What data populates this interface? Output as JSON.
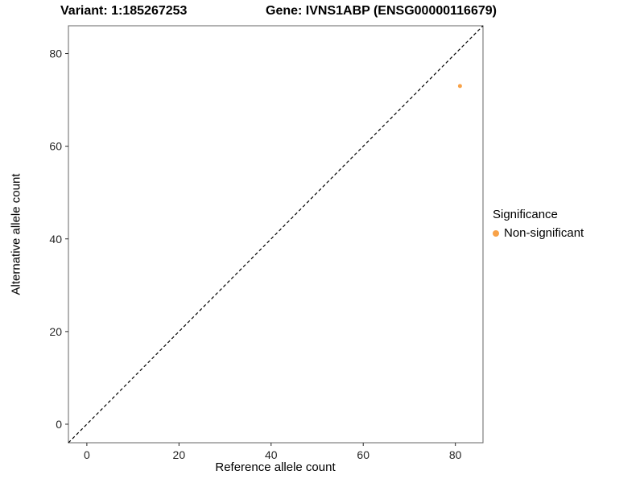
{
  "titles": {
    "left": "Variant: 1:185267253",
    "right": "Gene: IVNS1ABP (ENSG00000116679)"
  },
  "chart_data": {
    "type": "scatter",
    "xlabel": "Reference allele count",
    "ylabel": "Alternative allele count",
    "xlim": [
      -4,
      86
    ],
    "ylim": [
      -4,
      86
    ],
    "xticks": [
      0,
      20,
      40,
      60,
      80
    ],
    "yticks": [
      0,
      20,
      40,
      60,
      80
    ],
    "grid": false,
    "panel_border_color": "#666666",
    "identity_line": true,
    "identity_line_style": "dashed",
    "identity_line_color": "#000000",
    "point_color": "#F8A248",
    "point_radius": 2.5,
    "points": [
      {
        "x": 81,
        "y": 73,
        "series": "Non-significant"
      }
    ],
    "legend": {
      "title": "Significance",
      "position": "right",
      "entries": [
        {
          "label": "Non-significant",
          "color": "#F8A248"
        }
      ]
    }
  }
}
